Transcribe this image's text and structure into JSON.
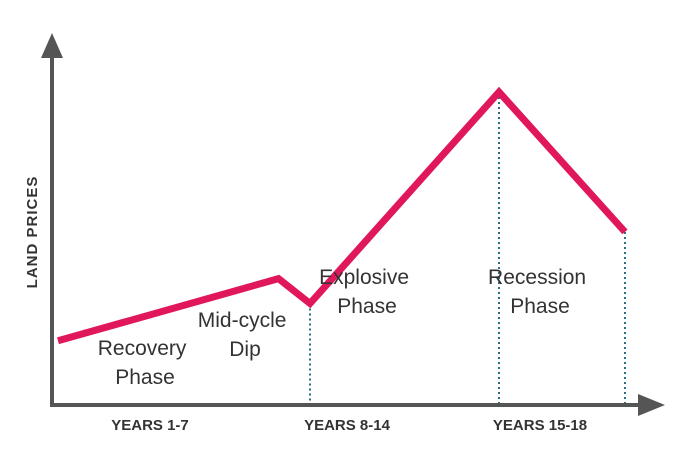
{
  "chart_data": {
    "type": "line",
    "ylabel": "LAND PRICES",
    "x_bands": [
      "YEARS 1-7",
      "YEARS 8-14",
      "YEARS 15-18"
    ],
    "x": [
      0,
      7,
      8,
      14,
      18
    ],
    "values": [
      20,
      40,
      32,
      100,
      55
    ],
    "xlim": [
      0,
      18
    ],
    "ylim": [
      0,
      100
    ],
    "phases": [
      {
        "lines": [
          "Recovery",
          "Phase"
        ]
      },
      {
        "lines": [
          "Mid-cycle",
          "Dip"
        ]
      },
      {
        "lines": [
          "Explosive",
          "Phase"
        ]
      },
      {
        "lines": [
          "Recession",
          "Phase"
        ]
      }
    ],
    "line_color": "#e0175b",
    "axis_color": "#555555",
    "divider_color": "#2a6f86",
    "grid": false
  }
}
